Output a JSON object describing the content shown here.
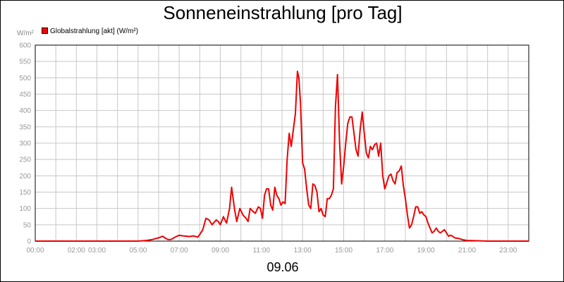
{
  "chart_data": {
    "type": "line",
    "title": "Sonneneinstrahlung [pro Tag]",
    "ylabel_unit": "W/m²",
    "xlabel": "09.06",
    "ylim": [
      0,
      600
    ],
    "xlim": [
      0,
      24
    ],
    "yticks": [
      0,
      50,
      100,
      150,
      200,
      250,
      300,
      350,
      400,
      450,
      500,
      550,
      600
    ],
    "xticks": [
      0,
      1,
      2,
      3,
      4,
      5,
      6,
      7,
      8,
      9,
      10,
      11,
      12,
      13,
      14,
      15,
      16,
      17,
      18,
      19,
      20,
      21,
      22,
      23
    ],
    "xtick_labels": [
      "00:00",
      "",
      "02:00",
      "03:00",
      "",
      "05:00",
      "",
      "07:00",
      "",
      "09:00",
      "",
      "11:00",
      "",
      "13:00",
      "",
      "15:00",
      "",
      "17:00",
      "",
      "19:00",
      "",
      "21:00",
      "",
      "23:00"
    ],
    "grid": true,
    "legend_position": "top-left",
    "series": [
      {
        "name": "Globalstrahlung [akt] (W/m²)",
        "color": "#ee0000",
        "x": [
          0,
          5.0,
          5.4,
          5.7,
          6.0,
          6.2,
          6.3,
          6.45,
          6.6,
          6.8,
          7.0,
          7.2,
          7.5,
          7.7,
          7.9,
          8.0,
          8.15,
          8.3,
          8.45,
          8.6,
          8.8,
          8.9,
          9.0,
          9.15,
          9.3,
          9.45,
          9.55,
          9.7,
          9.8,
          9.95,
          10.1,
          10.25,
          10.35,
          10.45,
          10.6,
          10.7,
          10.85,
          10.95,
          11.05,
          11.15,
          11.25,
          11.35,
          11.45,
          11.55,
          11.65,
          11.75,
          11.85,
          11.95,
          12.05,
          12.15,
          12.25,
          12.35,
          12.45,
          12.55,
          12.65,
          12.75,
          12.82,
          12.9,
          13.0,
          13.1,
          13.2,
          13.3,
          13.4,
          13.5,
          13.6,
          13.7,
          13.8,
          13.9,
          14.0,
          14.1,
          14.2,
          14.3,
          14.4,
          14.5,
          14.6,
          14.7,
          14.8,
          14.9,
          15.0,
          15.1,
          15.2,
          15.3,
          15.4,
          15.5,
          15.6,
          15.7,
          15.8,
          15.9,
          16.0,
          16.1,
          16.2,
          16.3,
          16.4,
          16.5,
          16.6,
          16.7,
          16.8,
          16.9,
          17.0,
          17.1,
          17.2,
          17.3,
          17.4,
          17.5,
          17.6,
          17.7,
          17.8,
          17.9,
          18.0,
          18.1,
          18.2,
          18.3,
          18.4,
          18.5,
          18.6,
          18.7,
          18.8,
          18.9,
          19.0,
          19.1,
          19.2,
          19.3,
          19.4,
          19.5,
          19.6,
          19.7,
          19.8,
          19.9,
          20.0,
          20.1,
          20.2,
          20.3,
          20.4,
          20.6,
          20.8,
          21.0,
          21.5,
          22.0,
          24
        ],
        "values": [
          0,
          0,
          2,
          5,
          10,
          15,
          10,
          5,
          5,
          12,
          18,
          16,
          14,
          16,
          12,
          20,
          35,
          70,
          65,
          50,
          65,
          60,
          50,
          75,
          55,
          100,
          165,
          95,
          60,
          100,
          80,
          70,
          60,
          100,
          90,
          85,
          105,
          100,
          70,
          140,
          160,
          160,
          110,
          95,
          165,
          140,
          130,
          110,
          120,
          115,
          250,
          330,
          290,
          340,
          390,
          520,
          500,
          420,
          240,
          220,
          160,
          110,
          100,
          175,
          170,
          150,
          90,
          100,
          80,
          75,
          130,
          130,
          140,
          160,
          410,
          510,
          300,
          175,
          230,
          300,
          360,
          380,
          380,
          330,
          280,
          260,
          340,
          395,
          330,
          270,
          255,
          290,
          280,
          295,
          300,
          260,
          300,
          200,
          160,
          180,
          200,
          205,
          185,
          175,
          210,
          215,
          230,
          170,
          130,
          80,
          40,
          50,
          75,
          105,
          105,
          85,
          90,
          80,
          75,
          55,
          40,
          25,
          30,
          40,
          30,
          25,
          30,
          35,
          25,
          15,
          18,
          15,
          10,
          8,
          4,
          2,
          1,
          0,
          0
        ]
      }
    ]
  }
}
